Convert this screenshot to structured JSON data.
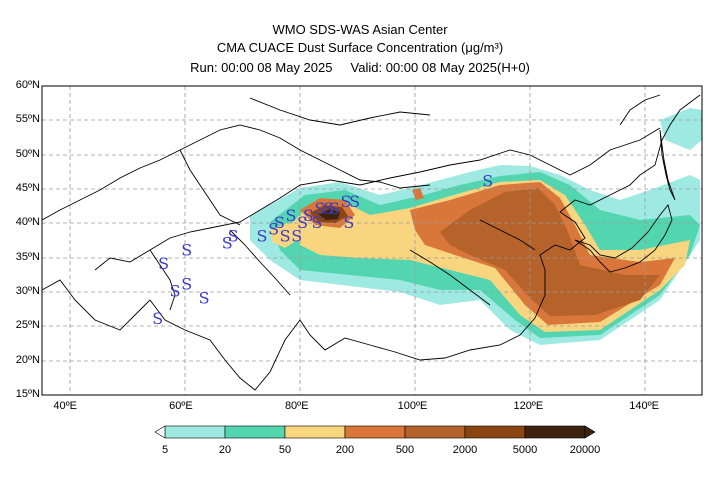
{
  "header": {
    "line1": "WMO SDS-WAS Asian Center",
    "line2": "CMA CUACE Dust Surface Concentration (μg/m³)",
    "run_label": "Run: 00:00 08 May 2025",
    "valid_label": "Valid: 00:00 08 May 2025(H+0)"
  },
  "map": {
    "lat_labels": [
      "60ºN",
      "55ºN",
      "50ºN",
      "45ºN",
      "40ºN",
      "35ºN",
      "30ºN",
      "25ºN",
      "20ºN",
      "15ºN"
    ],
    "lon_labels": [
      "40ºE",
      "60ºE",
      "80ºE",
      "100ºE",
      "120ºE",
      "140ºE"
    ],
    "extent": {
      "lon_min": 36,
      "lon_max": 150,
      "lat_min": 15,
      "lat_max": 60
    },
    "dust_storm_symbol": "S",
    "dust_storm_locations": [
      [
        113,
        46
      ],
      [
        90,
        43
      ],
      [
        88.5,
        43
      ],
      [
        84,
        42
      ],
      [
        85.5,
        42
      ],
      [
        86.5,
        42
      ],
      [
        82,
        41
      ],
      [
        79,
        41
      ],
      [
        77,
        40
      ],
      [
        81,
        40
      ],
      [
        83.5,
        40
      ],
      [
        89,
        40
      ],
      [
        76,
        39
      ],
      [
        78,
        38
      ],
      [
        80,
        38
      ],
      [
        74,
        38
      ],
      [
        69,
        38
      ],
      [
        68,
        37
      ],
      [
        61,
        36
      ],
      [
        57,
        34
      ],
      [
        61,
        31
      ],
      [
        59,
        30
      ],
      [
        64,
        29
      ],
      [
        56,
        26
      ]
    ]
  },
  "colorbar": {
    "labels": [
      "5",
      "20",
      "50",
      "200",
      "500",
      "2000",
      "5000",
      "20000"
    ],
    "colors": [
      "#9fe9e3",
      "#53d6b0",
      "#f8d57e",
      "#d9773a",
      "#b5622b",
      "#8b4513",
      "#3d2210"
    ]
  }
}
